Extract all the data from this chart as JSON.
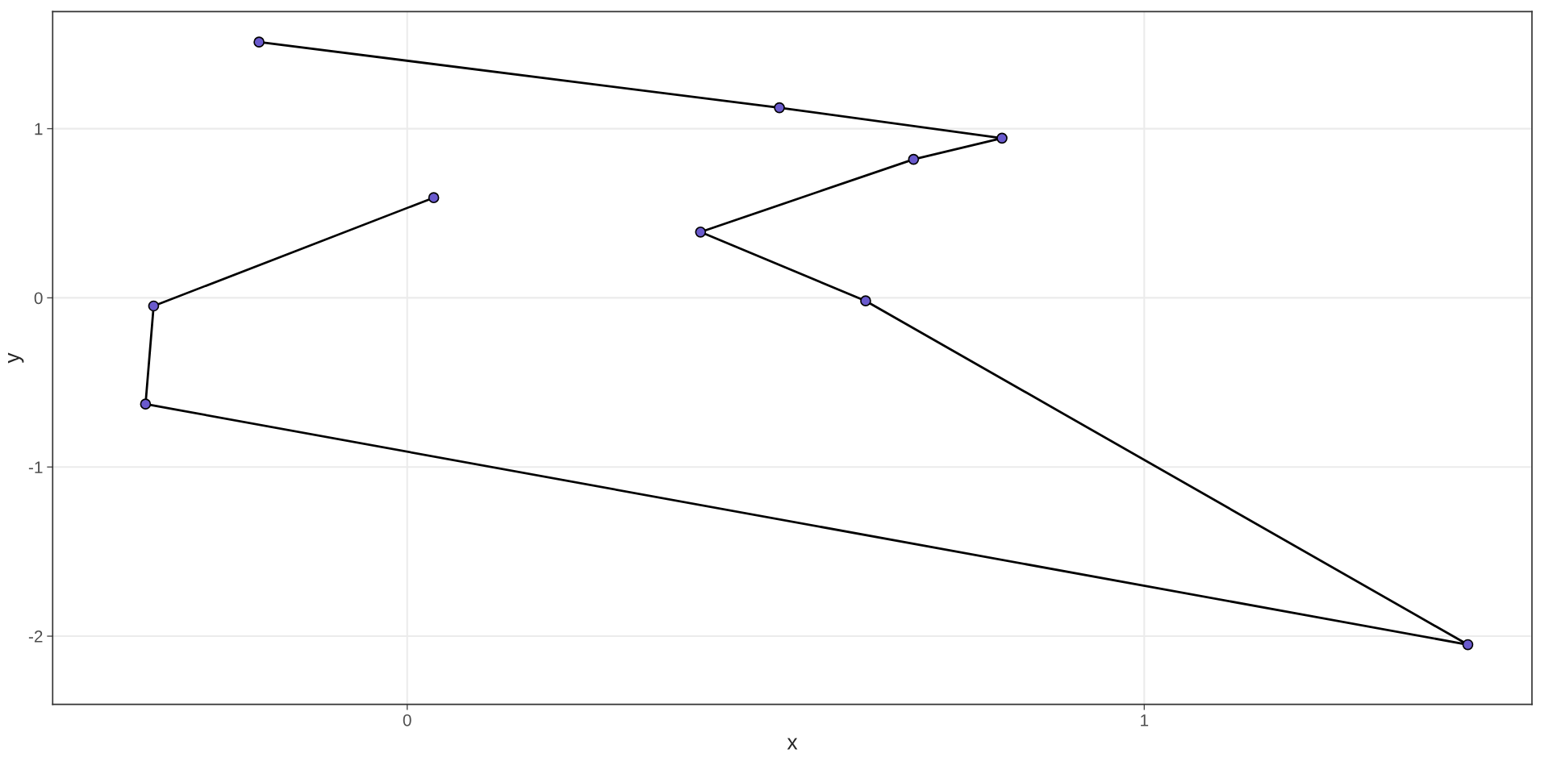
{
  "chart_data": {
    "type": "line",
    "xlabel": "x",
    "ylabel": "y",
    "series": [
      {
        "type": "line",
        "color": "#000000",
        "marker": "none",
        "x": [
          -0.201,
          0.505,
          0.807,
          0.687,
          0.398,
          0.622,
          1.439,
          -0.355,
          -0.344,
          0.036
        ],
        "values": [
          1.512,
          1.124,
          0.944,
          0.819,
          0.389,
          -0.018,
          -2.05,
          -0.628,
          -0.048,
          0.592
        ]
      },
      {
        "type": "scatter",
        "color": "#6a5acd",
        "marker": "circle",
        "x": [
          -0.201,
          0.505,
          0.807,
          0.687,
          0.398,
          0.622,
          1.439,
          -0.355,
          -0.344,
          0.036
        ],
        "values": [
          1.512,
          1.124,
          0.944,
          0.819,
          0.389,
          -0.018,
          -2.05,
          -0.628,
          -0.048,
          0.592
        ]
      }
    ],
    "xlim": [
      -0.481,
      1.526
    ],
    "ylim": [
      -2.403,
      1.692
    ],
    "xticks": [
      0,
      1
    ],
    "yticks": [
      -2,
      -1,
      0,
      1
    ],
    "grid": true
  }
}
